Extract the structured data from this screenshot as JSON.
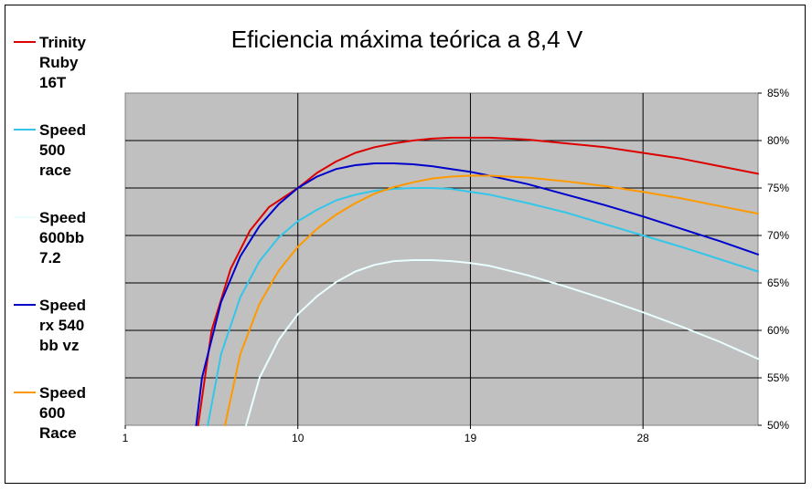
{
  "chart_data": {
    "type": "line",
    "title": "Eficiencia máxima teórica a 8,4 V",
    "xlabel": "",
    "ylabel": "",
    "x_ticks": [
      "1",
      "10",
      "19",
      "28"
    ],
    "xlim": [
      1,
      34
    ],
    "ylim": [
      50,
      85
    ],
    "y_ticks": [
      "50%",
      "55%",
      "60%",
      "65%",
      "70%",
      "75%",
      "80%",
      "85%"
    ],
    "grid": true,
    "legend_position": "left",
    "series": [
      {
        "name": "Trinity Ruby 16T",
        "name_lines": [
          "Trinity",
          "Ruby",
          "16T"
        ],
        "color": "#dd0000",
        "x": [
          4.8,
          5.5,
          6.5,
          7.5,
          8.5,
          10,
          11,
          12,
          13,
          14,
          15,
          16,
          17,
          18,
          19,
          20,
          21,
          22,
          24,
          26,
          28,
          30,
          32,
          34
        ],
        "y": [
          50,
          60,
          66.5,
          70.5,
          73,
          75,
          76.6,
          77.8,
          78.7,
          79.3,
          79.7,
          80,
          80.2,
          80.3,
          80.3,
          80.3,
          80.2,
          80.1,
          79.7,
          79.3,
          78.7,
          78.1,
          77.3,
          76.5
        ]
      },
      {
        "name": "Speed 500 race",
        "name_lines": [
          "Speed",
          "500",
          "race"
        ],
        "color": "#33c6e8",
        "x": [
          5.3,
          6,
          7,
          8,
          9,
          10,
          11,
          12,
          13,
          14,
          15,
          16,
          17,
          18,
          19,
          20,
          22,
          24,
          26,
          28,
          30,
          32,
          34
        ],
        "y": [
          50,
          57.5,
          63.5,
          67.3,
          69.8,
          71.5,
          72.7,
          73.7,
          74.3,
          74.7,
          74.9,
          75,
          75,
          74.9,
          74.6,
          74.3,
          73.4,
          72.4,
          71.2,
          70,
          68.8,
          67.5,
          66.2
        ]
      },
      {
        "name": "Speed 600bb 7.2",
        "name_lines": [
          "Speed",
          "600bb",
          "7.2"
        ],
        "color": "#e9ffff",
        "x": [
          7.3,
          8,
          9,
          10,
          11,
          12,
          13,
          14,
          15,
          16,
          17,
          18,
          19,
          20,
          22,
          24,
          26,
          28,
          30,
          32,
          34
        ],
        "y": [
          50,
          55,
          59,
          61.7,
          63.6,
          65.1,
          66.2,
          66.9,
          67.3,
          67.4,
          67.4,
          67.3,
          67.1,
          66.8,
          65.8,
          64.6,
          63.3,
          61.9,
          60.4,
          58.8,
          57
        ]
      },
      {
        "name": "Speed rx 540 bb vz",
        "name_lines": [
          "Speed",
          "rx 540",
          "bb vz"
        ],
        "color": "#0000cc",
        "x": [
          4.7,
          5,
          6,
          7,
          8,
          9,
          10,
          11,
          12,
          13,
          14,
          15,
          16,
          17,
          18,
          19,
          20,
          22,
          24,
          26,
          28,
          30,
          32,
          34
        ],
        "y": [
          50,
          55,
          63,
          67.8,
          71,
          73.3,
          75,
          76.2,
          77,
          77.4,
          77.6,
          77.6,
          77.5,
          77.3,
          77,
          76.7,
          76.3,
          75.4,
          74.3,
          73.2,
          72,
          70.7,
          69.4,
          68
        ]
      },
      {
        "name": "Speed 600 Race",
        "name_lines": [
          "Speed",
          "600",
          "Race"
        ],
        "color": "#ff9900",
        "x": [
          6.2,
          7,
          8,
          9,
          10,
          11,
          12,
          13,
          14,
          15,
          16,
          17,
          18,
          19,
          20,
          22,
          24,
          26,
          28,
          30,
          32,
          34
        ],
        "y": [
          50,
          57.5,
          62.8,
          66.3,
          68.8,
          70.7,
          72.2,
          73.4,
          74.4,
          75.1,
          75.6,
          76,
          76.2,
          76.3,
          76.3,
          76.1,
          75.7,
          75.2,
          74.6,
          73.9,
          73.1,
          72.3
        ]
      }
    ]
  }
}
